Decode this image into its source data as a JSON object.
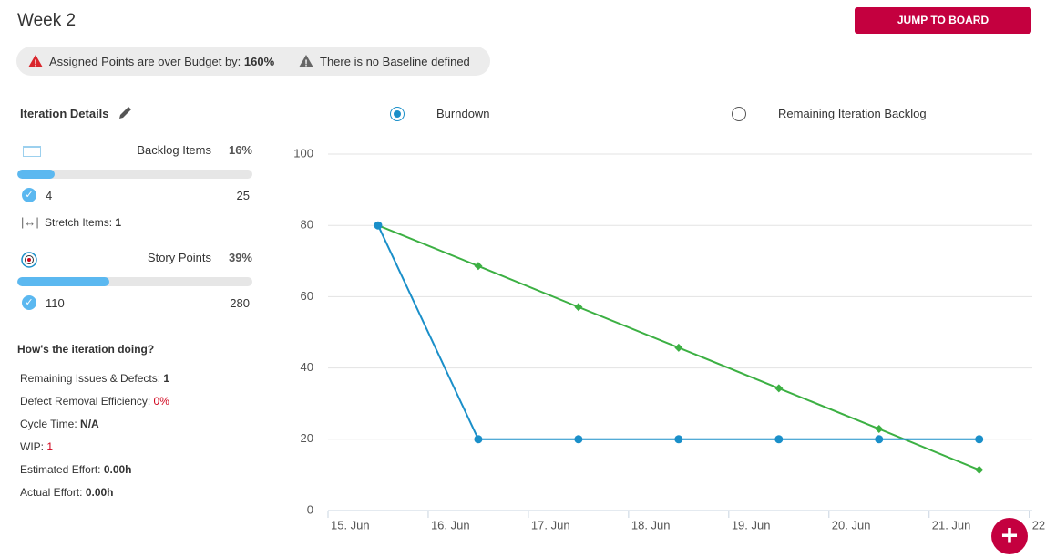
{
  "header": {
    "title": "Week 2",
    "button": "JUMP TO BOARD"
  },
  "alerts": [
    {
      "text": "Assigned Points are over Budget by:",
      "value": "160%",
      "color": "#d9262c"
    },
    {
      "text": "There is no Baseline defined",
      "color": "#666666"
    }
  ],
  "details": {
    "title": "Iteration Details",
    "backlog": {
      "label": "Backlog Items",
      "percent": {
        "value": 16,
        "label": "16%"
      },
      "done": 4,
      "total": 25
    },
    "stretch": {
      "label": "Stretch Items:",
      "value": 1
    },
    "points": {
      "label": "Story Points",
      "percent": {
        "value": 39,
        "label": "39%"
      },
      "done": 110,
      "total": 280
    }
  },
  "health": {
    "title": "How's the iteration doing?",
    "items": [
      {
        "label": "Remaining Issues & Defects:",
        "value": "1"
      },
      {
        "label": "Defect Removal Efficiency:",
        "value": "0%",
        "color": "#d0021b"
      },
      {
        "label": "Cycle Time:",
        "value": "N/A"
      },
      {
        "label": "WIP:",
        "value": "1",
        "color": "#d0021b"
      },
      {
        "label": "Estimated Effort:",
        "value": "0.00h"
      },
      {
        "label": "Actual Effort:",
        "value": "0.00h"
      }
    ]
  },
  "options": [
    {
      "label": "Burndown",
      "selected": true
    },
    {
      "label": "Remaining Iteration Backlog",
      "selected": false
    }
  ],
  "chart_data": {
    "type": "line",
    "x": [
      15.5,
      16.5,
      17.5,
      18.5,
      19.5,
      20.5,
      21.5
    ],
    "series": [
      {
        "color": "#3cb043",
        "marker": "diamond",
        "values": [
          80,
          68.6,
          57.1,
          45.7,
          34.3,
          22.9,
          11.4
        ]
      },
      {
        "color": "#1a8fc9",
        "marker": "circle",
        "values": [
          80,
          20,
          20,
          20,
          20,
          20,
          20
        ]
      }
    ],
    "xlim": [
      15,
      22.03
    ],
    "xticks": [
      {
        "value": 15,
        "label": "15. Jun"
      },
      {
        "value": 16,
        "label": "16. Jun"
      },
      {
        "value": 17,
        "label": "17. Jun"
      },
      {
        "value": 18,
        "label": "18. Jun"
      },
      {
        "value": 19,
        "label": "19. Jun"
      },
      {
        "value": 20,
        "label": "20. Jun"
      },
      {
        "value": 21,
        "label": "21. Jun"
      },
      {
        "value": 22,
        "label": "22"
      }
    ],
    "ylim": [
      0,
      100
    ],
    "yticks": [
      0,
      20,
      40,
      60,
      80,
      100
    ],
    "grid": true
  }
}
